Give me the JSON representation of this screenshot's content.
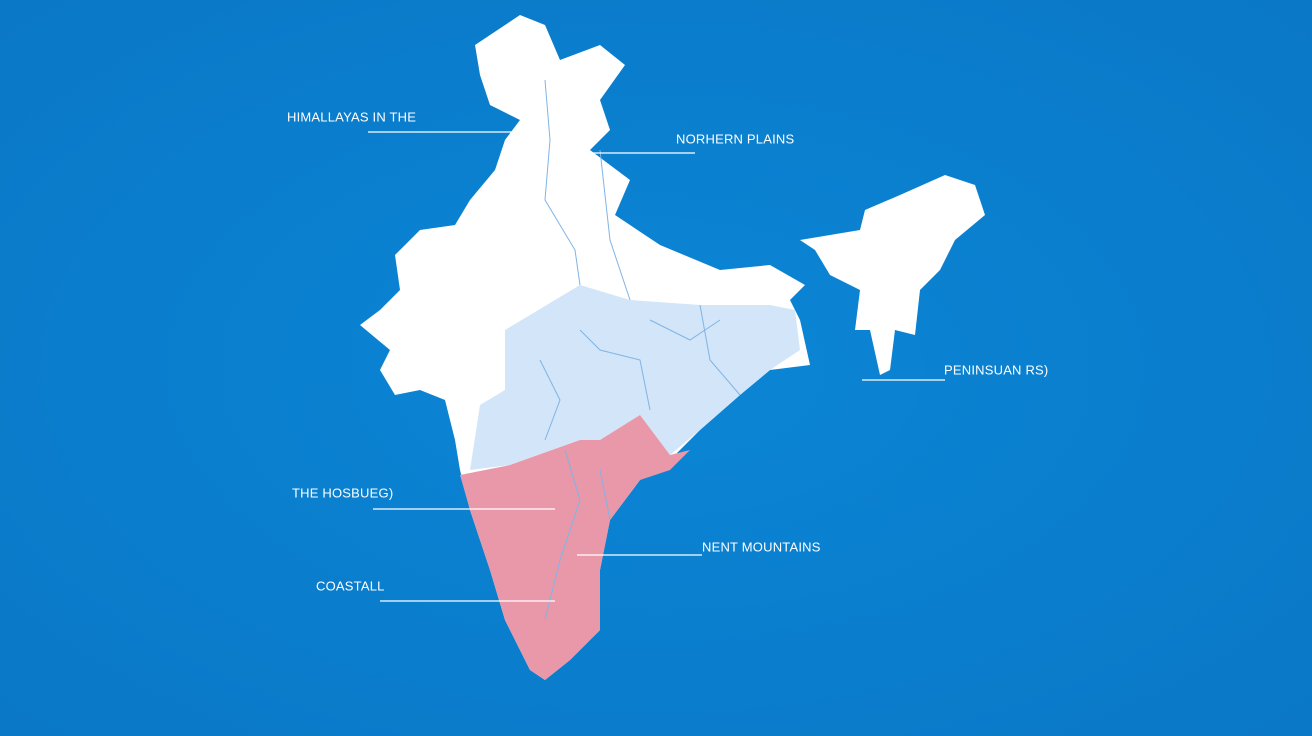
{
  "labels": [
    {
      "text": "HIMALLAYAS IN THE"
    },
    {
      "text": "NORHERN PLAINS"
    },
    {
      "text": "PENINSUAN RS)"
    },
    {
      "text": "THE HOSBUEG)"
    },
    {
      "text": "NENT MOUNTAINS"
    },
    {
      "text": "COASTALL"
    }
  ]
}
